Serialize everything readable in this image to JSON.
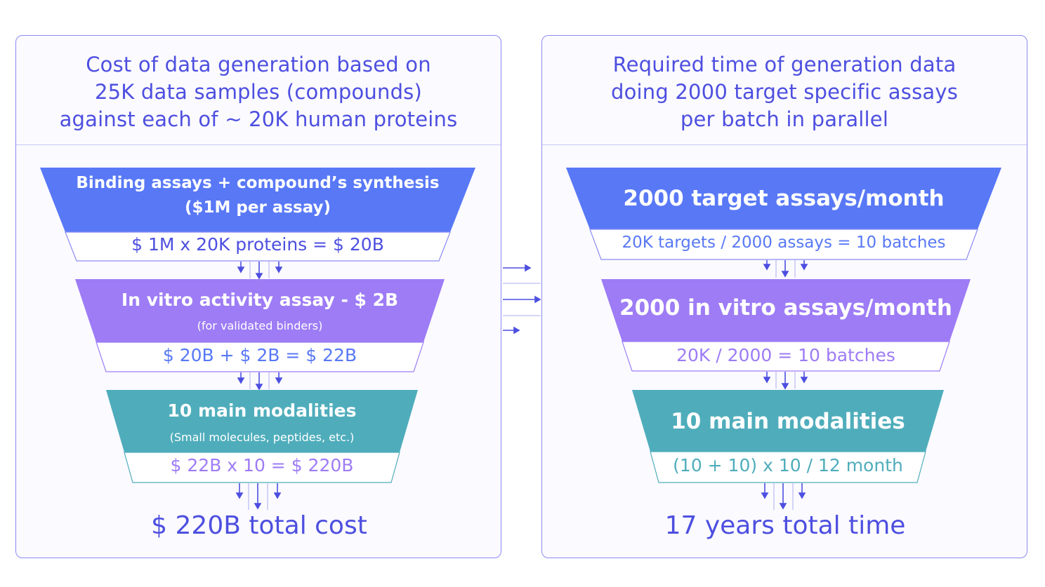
{
  "colors": {
    "blue": "#5878f6",
    "purple": "#9d7cf5",
    "teal": "#4fadbb",
    "title": "#4d4fe0",
    "border": "#8a8cf2",
    "arrow": "#4d4fe0"
  },
  "left": {
    "title_lines": [
      "Cost of data generation based on",
      "25K data samples (compounds)",
      "against each of ~ 20K human proteins"
    ],
    "stages": [
      {
        "header": "Binding assays + compound’s synthesis",
        "subheader": "($1M per assay)",
        "formula": "$ 1M x 20K proteins = $ 20B"
      },
      {
        "header": "In vitro activity assay - $ 2B",
        "subheader": "(for validated binders)",
        "formula": "$ 20B + $ 2B = $ 22B"
      },
      {
        "header": "10 main modalities",
        "subheader": "(Small molecules, peptides, etc.)",
        "formula": "$ 22B x 10 = $ 220B"
      }
    ],
    "total": "$ 220B total cost"
  },
  "right": {
    "title_lines": [
      "Required time of generation data",
      "doing 2000 target specific assays",
      "per batch in parallel"
    ],
    "stages": [
      {
        "header": "2000 target assays/month",
        "formula": "20K targets / 2000 assays = 10 batches"
      },
      {
        "header": "2000 in vitro assays/month",
        "formula": "20K / 2000 = 10 batches"
      },
      {
        "header": "10 main modalities",
        "formula": "(10 + 10) x 10 / 12 month"
      }
    ],
    "total": "17 years total time"
  }
}
